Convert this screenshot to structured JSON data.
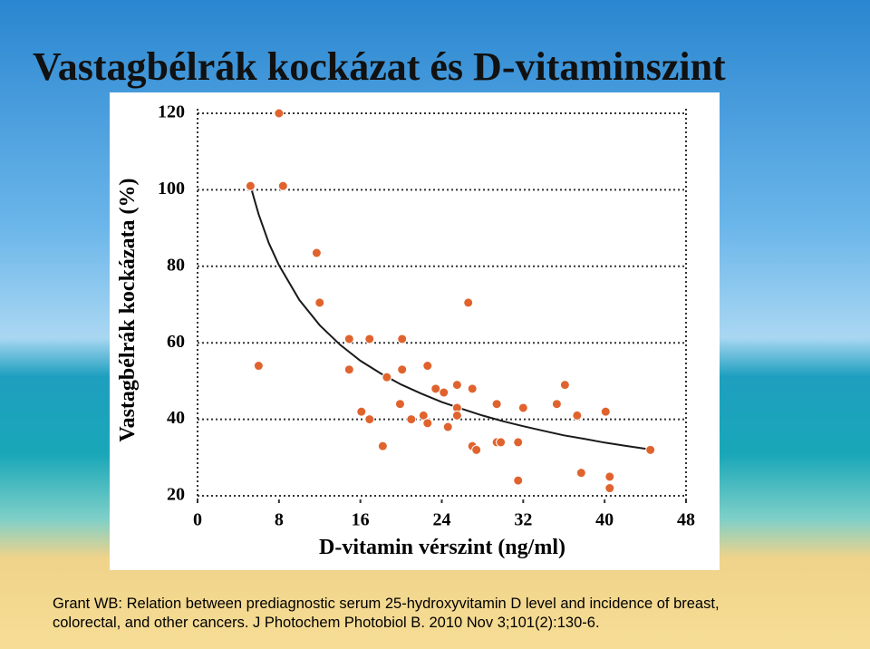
{
  "title": "Vastagbélrák kockázat és D-vitaminszint",
  "caption": [
    "Grant WB: Relation between prediagnostic serum 25-hydroxyvitamin D level and incidence of breast,",
    "colorectal, and other cancers. J Photochem Photobiol B. 2010 Nov 3;101(2):130-6."
  ],
  "chart_data": {
    "type": "scatter",
    "x_label": "D-vitamin vérszint (ng/ml)",
    "y_label": "Vastagbélrák kockázata (%)",
    "x": [
      5.2,
      8.0,
      8.4,
      6.0,
      11.7,
      12.0,
      14.9,
      14.9,
      16.9,
      16.1,
      16.9,
      18.2,
      18.6,
      20.1,
      20.1,
      19.9,
      21.0,
      22.2,
      22.6,
      22.6,
      23.4,
      24.2,
      24.6,
      25.5,
      25.5,
      25.5,
      26.6,
      27.0,
      27.0,
      27.4,
      29.4,
      29.4,
      29.8,
      31.5,
      31.5,
      32.0,
      35.3,
      36.1,
      37.3,
      37.7,
      40.1,
      40.5,
      40.5,
      44.5
    ],
    "y": [
      101,
      120,
      101,
      54,
      83.5,
      70.5,
      61,
      53,
      61,
      42,
      40,
      33,
      51,
      61,
      53,
      44,
      40,
      41,
      54,
      39,
      48,
      47,
      38,
      49,
      43,
      41,
      70.5,
      48,
      33,
      32,
      44,
      34,
      34,
      34,
      24,
      43,
      44,
      49,
      41,
      26,
      42,
      25,
      22,
      32
    ],
    "color": "#e0632e",
    "fit_x": [
      5.2,
      6,
      7,
      8,
      10,
      12,
      14,
      16,
      18,
      20,
      22,
      24,
      26,
      28,
      30,
      32,
      34,
      36,
      38,
      40,
      42,
      44.5
    ],
    "fit_y": [
      101,
      93.6,
      86.1,
      80.3,
      71.2,
      64.6,
      59.5,
      55.3,
      52.0,
      49.1,
      46.7,
      44.5,
      42.7,
      41.0,
      39.5,
      38.2,
      37.0,
      35.8,
      34.9,
      33.9,
      33.1,
      32.1
    ],
    "fit_color": "#1a1a1a",
    "xlim": [
      0,
      48
    ],
    "xticks": [
      0,
      8,
      16,
      24,
      32,
      40,
      48
    ],
    "ylim": [
      20,
      120
    ],
    "yticks": [
      20,
      40,
      60,
      80,
      100,
      120
    ],
    "grid": true
  }
}
